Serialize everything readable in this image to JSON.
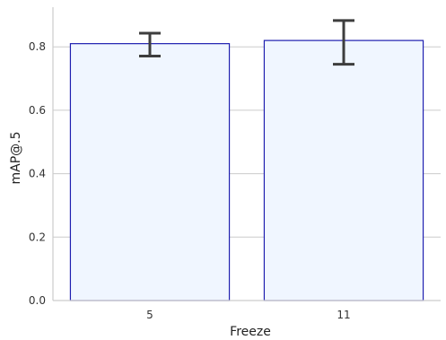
{
  "chart_data": {
    "type": "bar",
    "categories": [
      "5",
      "11"
    ],
    "values": [
      0.81,
      0.82
    ],
    "error_low": [
      0.771,
      0.745
    ],
    "error_high": [
      0.843,
      0.883
    ],
    "xlabel": "Freeze",
    "ylabel": "mAP@.5",
    "ylim": [
      0,
      0.925
    ],
    "yticks": [
      0.0,
      0.2,
      0.4,
      0.6,
      0.8
    ],
    "ytick_labels": [
      "0.0",
      "0.2",
      "0.4",
      "0.6",
      "0.8"
    ],
    "grid": "horizontal",
    "colors": {
      "bar_fill": "#f0f6ff",
      "bar_edge": "#1f1fb0",
      "error_bar": "#3d3d3d",
      "grid": "#cccccc",
      "spine": "#cccccc"
    }
  }
}
